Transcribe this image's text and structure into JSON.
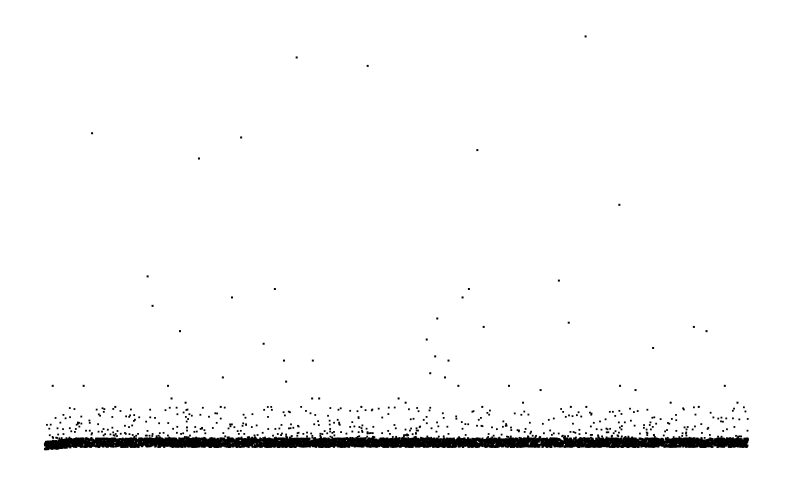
{
  "chart_data": {
    "type": "scatter",
    "title": "",
    "xlabel": "",
    "ylabel": "",
    "grid": false,
    "legend": "none",
    "xlim": [
      0,
      1000
    ],
    "ylim": [
      0,
      100
    ],
    "point_color": "#000000",
    "baseline": {
      "description_level_y": [
        0.5,
        2.5
      ],
      "point_count": 5200
    },
    "low_cloud": {
      "y_range": [
        2.5,
        10
      ],
      "point_count": 650
    },
    "outliers": [
      {
        "x": 769,
        "y": 98
      },
      {
        "x": 358,
        "y": 93
      },
      {
        "x": 459,
        "y": 91
      },
      {
        "x": 67,
        "y": 75
      },
      {
        "x": 279,
        "y": 74
      },
      {
        "x": 219,
        "y": 69
      },
      {
        "x": 615,
        "y": 71
      },
      {
        "x": 817,
        "y": 58
      },
      {
        "x": 146,
        "y": 41
      },
      {
        "x": 153,
        "y": 34
      },
      {
        "x": 327,
        "y": 38
      },
      {
        "x": 266,
        "y": 36
      },
      {
        "x": 603,
        "y": 38
      },
      {
        "x": 731,
        "y": 40
      },
      {
        "x": 594,
        "y": 36
      },
      {
        "x": 192,
        "y": 28
      },
      {
        "x": 558,
        "y": 31
      },
      {
        "x": 624,
        "y": 29
      },
      {
        "x": 745,
        "y": 30
      },
      {
        "x": 923,
        "y": 29
      },
      {
        "x": 941,
        "y": 28
      },
      {
        "x": 865,
        "y": 24
      },
      {
        "x": 543,
        "y": 26
      },
      {
        "x": 311,
        "y": 25
      },
      {
        "x": 340,
        "y": 21
      },
      {
        "x": 381,
        "y": 21
      },
      {
        "x": 555,
        "y": 22
      },
      {
        "x": 574,
        "y": 21
      },
      {
        "x": 11,
        "y": 15
      },
      {
        "x": 55,
        "y": 15
      },
      {
        "x": 175,
        "y": 15
      },
      {
        "x": 253,
        "y": 17
      },
      {
        "x": 343,
        "y": 16
      },
      {
        "x": 548,
        "y": 18
      },
      {
        "x": 569,
        "y": 17
      },
      {
        "x": 588,
        "y": 15
      },
      {
        "x": 660,
        "y": 15
      },
      {
        "x": 705,
        "y": 14
      },
      {
        "x": 818,
        "y": 15
      },
      {
        "x": 840,
        "y": 14
      },
      {
        "x": 967,
        "y": 15
      },
      {
        "x": 180,
        "y": 12
      },
      {
        "x": 200,
        "y": 11
      },
      {
        "x": 380,
        "y": 12
      },
      {
        "x": 390,
        "y": 12
      },
      {
        "x": 503,
        "y": 12
      },
      {
        "x": 513,
        "y": 11
      },
      {
        "x": 622,
        "y": 10
      },
      {
        "x": 680,
        "y": 11
      },
      {
        "x": 748,
        "y": 10
      },
      {
        "x": 890,
        "y": 11
      },
      {
        "x": 985,
        "y": 11
      },
      {
        "x": 100,
        "y": 10
      },
      {
        "x": 450,
        "y": 10
      },
      {
        "x": 770,
        "y": 10
      },
      {
        "x": 930,
        "y": 10
      },
      {
        "x": 250,
        "y": 10
      }
    ]
  }
}
